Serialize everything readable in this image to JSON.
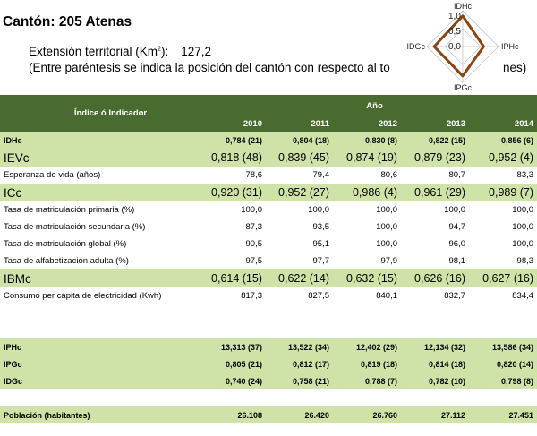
{
  "header": {
    "title": "Cantón: 205 Atenas",
    "extension_label": "Extensión territorial (Km",
    "extension_unit_sup": "2",
    "extension_suffix": "):",
    "extension_value": "127,2",
    "note_start": "(Entre paréntesis se indica la posición del cantón con respecto al to",
    "note_end": "nes)"
  },
  "radar": {
    "axes": [
      "IDHc",
      "IPHc",
      "IPGc",
      "IDGc"
    ],
    "ticks": [
      "1,0",
      "0,5",
      "0,0"
    ],
    "values": [
      0.856,
      0.586,
      0.82,
      0.798
    ],
    "line_color": "#8b4513"
  },
  "table": {
    "index_header": "Índice ó Indicador",
    "year_header": "Año",
    "years": [
      "2010",
      "2011",
      "2012",
      "2013",
      "2014"
    ],
    "rows": [
      {
        "label": "IDHc",
        "values": [
          "0,784 (21)",
          "0,804 (18)",
          "0,830 (8)",
          "0,822 (15)",
          "0,856 (6)"
        ]
      },
      {
        "label": "IEVc",
        "values": [
          "0,818 (48)",
          "0,839 (45)",
          "0,874 (19)",
          "0,879 (23)",
          "0,952 (4)"
        ]
      },
      {
        "label": "Esperanza de vida (años)",
        "values": [
          "78,6",
          "79,4",
          "80,6",
          "80,7",
          "83,3"
        ]
      },
      {
        "label": "ICc",
        "values": [
          "0,920 (31)",
          "0,952 (27)",
          "0,986 (4)",
          "0,961 (29)",
          "0,989 (7)"
        ]
      },
      {
        "label": "Tasa de matriculación primaria (%)",
        "values": [
          "100,0",
          "100,0",
          "100,0",
          "100,0",
          "100,0"
        ]
      },
      {
        "label": "Tasa de matriculación secundaria (%)",
        "values": [
          "87,3",
          "93,5",
          "100,0",
          "94,7",
          "100,0"
        ]
      },
      {
        "label": "Tasa de matriculación global (%)",
        "values": [
          "90,5",
          "95,1",
          "100,0",
          "96,0",
          "100,0"
        ]
      },
      {
        "label": "Tasa de alfabetización adulta (%)",
        "values": [
          "97,5",
          "97,7",
          "97,9",
          "98,1",
          "98,3"
        ]
      },
      {
        "label": "IBMc",
        "values": [
          "0,614 (15)",
          "0,622 (14)",
          "0,632 (15)",
          "0,626 (16)",
          "0,627 (16)"
        ]
      },
      {
        "label": "Consumo per cápita de electricidad (Kwh)",
        "values": [
          "817,3",
          "827,5",
          "840,1",
          "832,7",
          "834,4"
        ]
      },
      {
        "label": "IPHc",
        "values": [
          "13,313 (37)",
          "13,522 (34)",
          "12,402 (29)",
          "12,134 (32)",
          "13,586 (34)"
        ]
      },
      {
        "label": "IPGc",
        "values": [
          "0,805 (21)",
          "0,812 (17)",
          "0,819 (18)",
          "0,814 (18)",
          "0,820 (14)"
        ]
      },
      {
        "label": "IDGc",
        "values": [
          "0,740 (24)",
          "0,758 (21)",
          "0,788 (7)",
          "0,782 (10)",
          "0,798 (8)"
        ]
      },
      {
        "label": "Población (habitantes)",
        "values": [
          "26.108",
          "26.420",
          "26.760",
          "27.112",
          "27.451"
        ]
      }
    ]
  }
}
